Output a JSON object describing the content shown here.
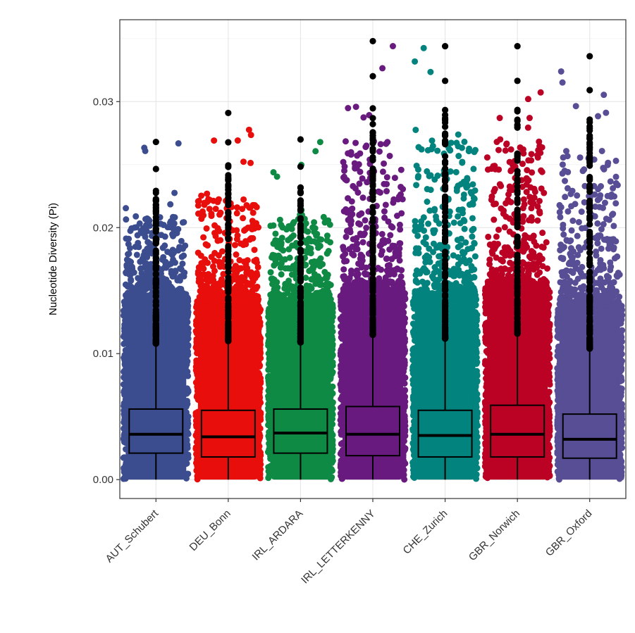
{
  "chart_data": {
    "type": "boxplot_jitter",
    "title": "",
    "xlabel": "",
    "ylabel": "Nucleotide Diversity (Pi)",
    "ylim": [
      -0.0015,
      0.0365
    ],
    "yticks": [
      0.0,
      0.01,
      0.02,
      0.03
    ],
    "ytick_labels": [
      "0.00",
      "0.01",
      "0.02",
      "0.03"
    ],
    "grid": true,
    "legend": "none",
    "categories": [
      "AUT_Schubert",
      "DEU_Bonn",
      "IRL_ARDARA",
      "IRL_LETTERKENNY",
      "CHE_Zurich",
      "GBR_Norwich",
      "GBR_Oxford"
    ],
    "colors": [
      "#3C4D8F",
      "#E80E0C",
      "#0E8A45",
      "#691A7F",
      "#03837E",
      "#BB0225",
      "#574E95"
    ],
    "outlier_color": "#000000",
    "series": [
      {
        "name": "AUT_Schubert",
        "min": 0.0,
        "q1": 0.0021,
        "median": 0.0036,
        "q3": 0.0056,
        "whisker_high": 0.0108,
        "max": 0.0268,
        "dense_top": 0.0145
      },
      {
        "name": "DEU_Bonn",
        "min": 0.0,
        "q1": 0.0018,
        "median": 0.0034,
        "q3": 0.0055,
        "whisker_high": 0.011,
        "max": 0.0291,
        "dense_top": 0.0142
      },
      {
        "name": "IRL_ARDARA",
        "min": 0.0,
        "q1": 0.0021,
        "median": 0.0037,
        "q3": 0.0056,
        "whisker_high": 0.0109,
        "max": 0.027,
        "dense_top": 0.014
      },
      {
        "name": "IRL_LETTERKENNY",
        "min": 0.0,
        "q1": 0.0019,
        "median": 0.0036,
        "q3": 0.0058,
        "whisker_high": 0.0115,
        "max": 0.0348,
        "dense_top": 0.0148
      },
      {
        "name": "CHE_Zurich",
        "min": 0.0,
        "q1": 0.0018,
        "median": 0.0035,
        "q3": 0.0055,
        "whisker_high": 0.0112,
        "max": 0.0344,
        "dense_top": 0.0145
      },
      {
        "name": "GBR_Norwich",
        "min": 0.0,
        "q1": 0.0018,
        "median": 0.0036,
        "q3": 0.0059,
        "whisker_high": 0.0116,
        "max": 0.0344,
        "dense_top": 0.0152
      },
      {
        "name": "GBR_Oxford",
        "min": 0.0,
        "q1": 0.0017,
        "median": 0.0032,
        "q3": 0.0052,
        "whisker_high": 0.0104,
        "max": 0.0336,
        "dense_top": 0.0138
      }
    ]
  }
}
